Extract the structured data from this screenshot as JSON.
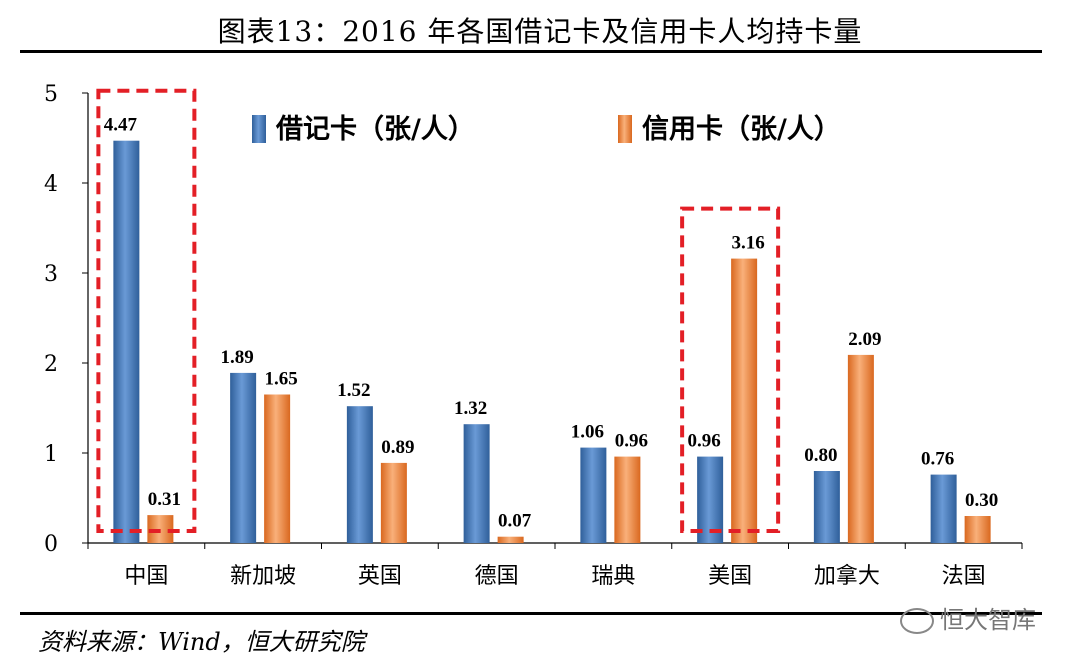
{
  "header": {
    "title": "图表13：2016 年各国借记卡及信用卡人均持卡量"
  },
  "footer": {
    "source": "资料来源：Wind，恒大研究院",
    "watermark": "恒大智库"
  },
  "colors": {
    "debit": "#4a7ebb",
    "credit": "#f0883e",
    "highlight": "#e31f26"
  },
  "chart_data": {
    "type": "bar",
    "title": "图表13：2016 年各国借记卡及信用卡人均持卡量",
    "categories": [
      "中国",
      "新加坡",
      "英国",
      "德国",
      "瑞典",
      "美国",
      "加拿大",
      "法国"
    ],
    "series": [
      {
        "name": "借记卡（张/人）",
        "values": [
          4.47,
          1.89,
          1.52,
          1.32,
          1.06,
          0.96,
          0.8,
          0.76
        ],
        "labels": [
          "4.47",
          "1.89",
          "1.52",
          "1.32",
          "1.06",
          "0.96",
          "0.80",
          "0.76"
        ]
      },
      {
        "name": "信用卡（张/人）",
        "values": [
          0.31,
          1.65,
          0.89,
          0.07,
          0.96,
          3.16,
          2.09,
          0.3
        ],
        "labels": [
          "0.31",
          "1.65",
          "0.89",
          "0.07",
          "0.96",
          "3.16",
          "2.09",
          "0.30"
        ]
      }
    ],
    "ylim": [
      0,
      5
    ],
    "yticks": [
      "0",
      "1",
      "2",
      "3",
      "4",
      "5"
    ],
    "grid": false,
    "legend": "top",
    "highlight_categories": [
      "中国",
      "美国"
    ]
  }
}
